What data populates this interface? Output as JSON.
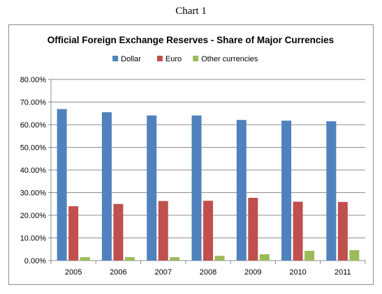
{
  "page_label": "Chart 1",
  "chart_data": {
    "type": "bar",
    "title": "Official Foreign Exchange Reserves - Share of Major Currencies",
    "xlabel": "",
    "ylabel": "",
    "categories": [
      "2005",
      "2006",
      "2007",
      "2008",
      "2009",
      "2010",
      "2011"
    ],
    "series": [
      {
        "name": "Dollar",
        "color": "#4f81bd",
        "values": [
          66.9,
          65.5,
          64.1,
          64.1,
          62.1,
          61.8,
          61.5
        ]
      },
      {
        "name": "Euro",
        "color": "#c0504d",
        "values": [
          24.0,
          25.0,
          26.3,
          26.4,
          27.7,
          26.0,
          25.9
        ]
      },
      {
        "name": "Other currencies",
        "color": "#9bbb59",
        "values": [
          1.5,
          1.5,
          1.5,
          2.1,
          2.8,
          4.3,
          4.6
        ]
      }
    ],
    "ylim": [
      0,
      80
    ],
    "yticks": [
      "0.00%",
      "10.00%",
      "20.00%",
      "30.00%",
      "40.00%",
      "50.00%",
      "60.00%",
      "70.00%",
      "80.00%"
    ],
    "grid": true,
    "legend_position": "top"
  }
}
